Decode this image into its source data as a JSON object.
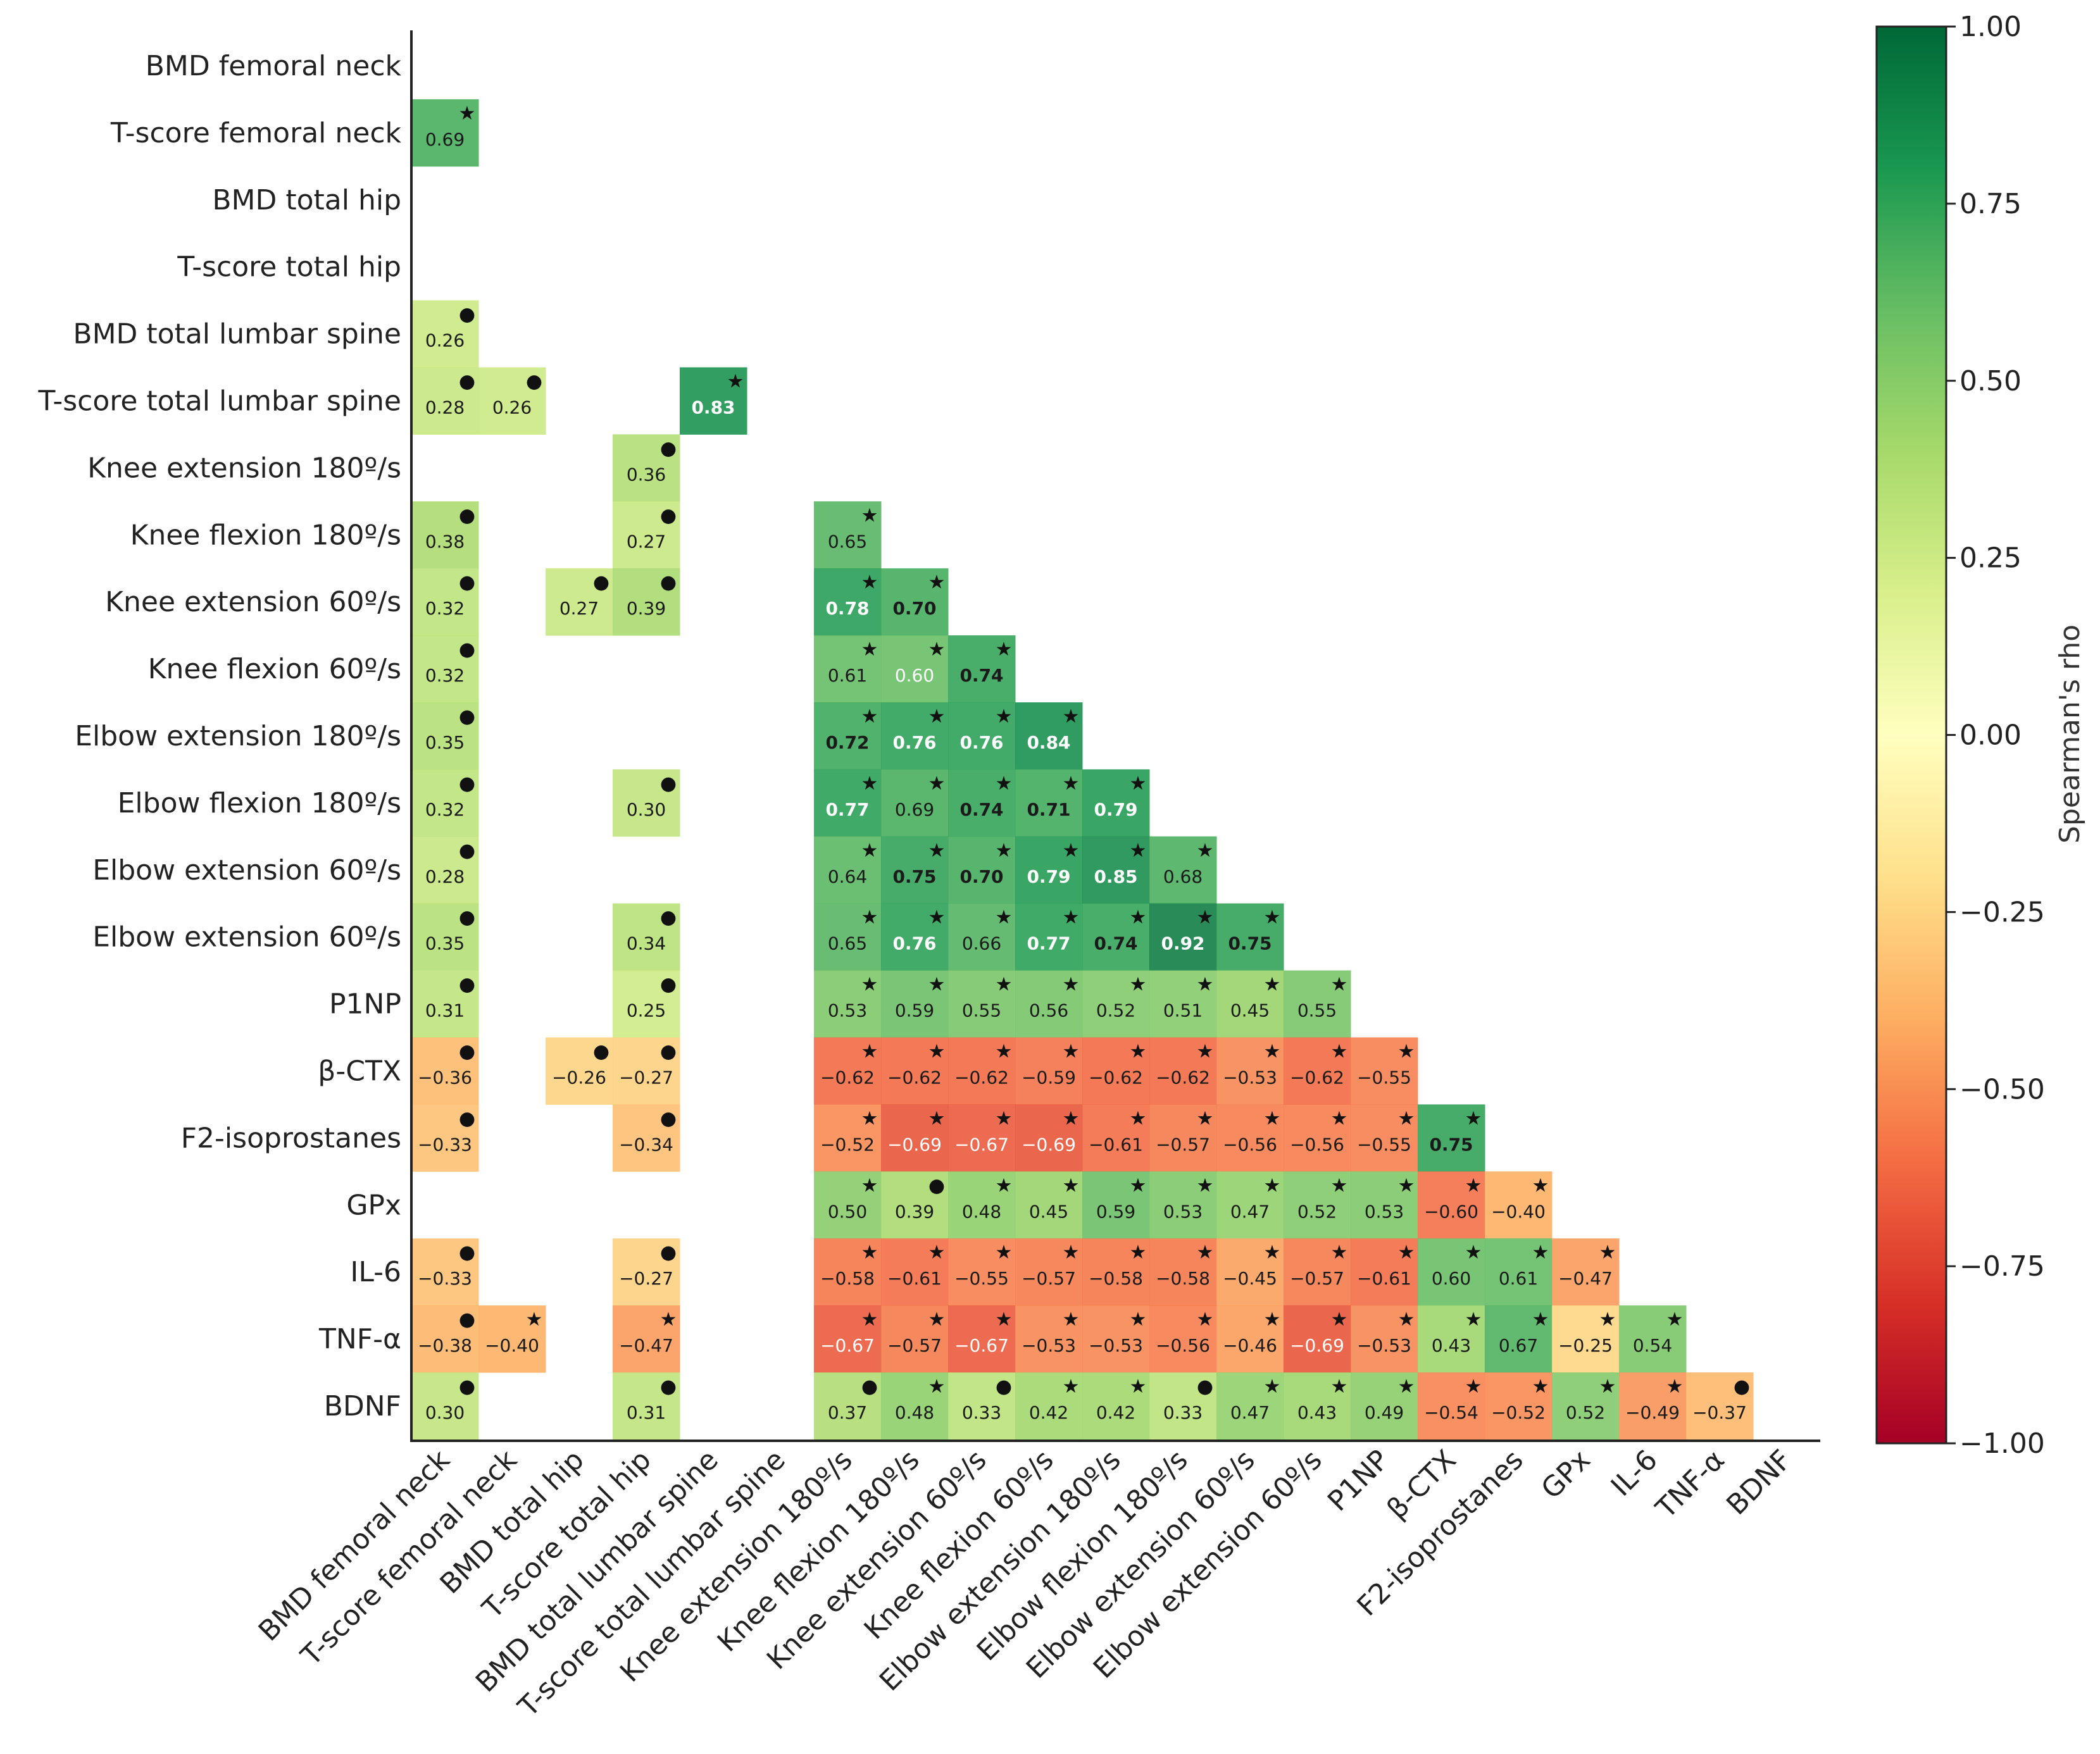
{
  "chart_data": {
    "type": "heatmap",
    "title": "",
    "labels": [
      "BMD femoral neck",
      "T-score femoral neck",
      "BMD total hip",
      "T-score total hip",
      "BMD total lumbar spine",
      "T-score total lumbar spine",
      "Knee extension 180º/s",
      "Knee flexion 180º/s",
      "Knee extension 60º/s",
      "Knee flexion 60º/s",
      "Elbow extension 180º/s",
      "Elbow flexion 180º/s",
      "Elbow extension 60º/s",
      "Elbow extension 60º/s",
      "P1NP",
      "β-CTX",
      "F2-isoprostanes",
      "GPx",
      "IL-6",
      "TNF-α",
      "BDNF"
    ],
    "x_labels": [
      "BMD femoral neck",
      "T-score femoral neck",
      "BMD total hip",
      "T-score total hip",
      "BMD total lumbar spine",
      "T-score total lumbar spine",
      "Knee extension 180º/s",
      "Knee flexion 180º/s",
      "Knee extension 60º/s",
      "Knee flexion 60º/s",
      "Elbow extension 180º/s",
      "Elbow flexion 180º/s",
      "Elbow extension 60º/s",
      "Elbow extension 60º/s",
      "P1NP",
      "β-CTX",
      "F2-isoprostanes",
      "GPx",
      "IL-6",
      "TNF-α",
      "BDNF"
    ],
    "cell_fields": [
      "row",
      "col",
      "rho",
      "marker"
    ],
    "cells": [
      [
        1,
        0,
        0.69,
        "star"
      ],
      [
        4,
        0,
        0.26,
        "dot"
      ],
      [
        5,
        0,
        0.28,
        "dot"
      ],
      [
        5,
        1,
        0.26,
        "dot"
      ],
      [
        5,
        4,
        0.83,
        "star"
      ],
      [
        6,
        3,
        0.36,
        "dot"
      ],
      [
        7,
        0,
        0.38,
        "dot"
      ],
      [
        7,
        3,
        0.27,
        "dot"
      ],
      [
        7,
        6,
        0.65,
        "star"
      ],
      [
        8,
        0,
        0.32,
        "dot"
      ],
      [
        8,
        2,
        0.27,
        "dot"
      ],
      [
        8,
        3,
        0.39,
        "dot"
      ],
      [
        8,
        6,
        0.78,
        "star"
      ],
      [
        8,
        7,
        0.7,
        "star"
      ],
      [
        9,
        0,
        0.32,
        "dot"
      ],
      [
        9,
        6,
        0.61,
        "star"
      ],
      [
        9,
        7,
        0.6,
        "star"
      ],
      [
        9,
        8,
        0.74,
        "star"
      ],
      [
        10,
        0,
        0.35,
        "dot"
      ],
      [
        10,
        6,
        0.72,
        "star"
      ],
      [
        10,
        7,
        0.76,
        "star"
      ],
      [
        10,
        8,
        0.76,
        "star"
      ],
      [
        10,
        9,
        0.84,
        "star"
      ],
      [
        11,
        0,
        0.32,
        "dot"
      ],
      [
        11,
        3,
        0.3,
        "dot"
      ],
      [
        11,
        6,
        0.77,
        "star"
      ],
      [
        11,
        7,
        0.69,
        "star"
      ],
      [
        11,
        8,
        0.74,
        "star"
      ],
      [
        11,
        9,
        0.71,
        "star"
      ],
      [
        11,
        10,
        0.79,
        "star"
      ],
      [
        12,
        0,
        0.28,
        "dot"
      ],
      [
        12,
        6,
        0.64,
        "star"
      ],
      [
        12,
        7,
        0.75,
        "star"
      ],
      [
        12,
        8,
        0.7,
        "star"
      ],
      [
        12,
        9,
        0.79,
        "star"
      ],
      [
        12,
        10,
        0.85,
        "star"
      ],
      [
        12,
        11,
        0.68,
        "star"
      ],
      [
        13,
        0,
        0.35,
        "dot"
      ],
      [
        13,
        3,
        0.34,
        "dot"
      ],
      [
        13,
        6,
        0.65,
        "star"
      ],
      [
        13,
        7,
        0.76,
        "star"
      ],
      [
        13,
        8,
        0.66,
        "star"
      ],
      [
        13,
        9,
        0.77,
        "star"
      ],
      [
        13,
        10,
        0.74,
        "star"
      ],
      [
        13,
        11,
        0.92,
        "star"
      ],
      [
        13,
        12,
        0.75,
        "star"
      ],
      [
        14,
        0,
        0.31,
        "dot"
      ],
      [
        14,
        3,
        0.25,
        "dot"
      ],
      [
        14,
        6,
        0.53,
        "star"
      ],
      [
        14,
        7,
        0.59,
        "star"
      ],
      [
        14,
        8,
        0.55,
        "star"
      ],
      [
        14,
        9,
        0.56,
        "star"
      ],
      [
        14,
        10,
        0.52,
        "star"
      ],
      [
        14,
        11,
        0.51,
        "star"
      ],
      [
        14,
        12,
        0.45,
        "star"
      ],
      [
        14,
        13,
        0.55,
        "star"
      ],
      [
        15,
        0,
        -0.36,
        "dot"
      ],
      [
        15,
        2,
        -0.26,
        "dot"
      ],
      [
        15,
        3,
        -0.27,
        "dot"
      ],
      [
        15,
        6,
        -0.62,
        "star"
      ],
      [
        15,
        7,
        -0.62,
        "star"
      ],
      [
        15,
        8,
        -0.62,
        "star"
      ],
      [
        15,
        9,
        -0.59,
        "star"
      ],
      [
        15,
        10,
        -0.62,
        "star"
      ],
      [
        15,
        11,
        -0.62,
        "star"
      ],
      [
        15,
        12,
        -0.53,
        "star"
      ],
      [
        15,
        13,
        -0.62,
        "star"
      ],
      [
        15,
        14,
        -0.55,
        "star"
      ],
      [
        16,
        0,
        -0.33,
        "dot"
      ],
      [
        16,
        3,
        -0.34,
        "dot"
      ],
      [
        16,
        6,
        -0.52,
        "star"
      ],
      [
        16,
        7,
        -0.69,
        "star"
      ],
      [
        16,
        8,
        -0.67,
        "star"
      ],
      [
        16,
        9,
        -0.69,
        "star"
      ],
      [
        16,
        10,
        -0.61,
        "star"
      ],
      [
        16,
        11,
        -0.57,
        "star"
      ],
      [
        16,
        12,
        -0.56,
        "star"
      ],
      [
        16,
        13,
        -0.56,
        "star"
      ],
      [
        16,
        14,
        -0.55,
        "star"
      ],
      [
        16,
        15,
        0.75,
        "star"
      ],
      [
        17,
        6,
        0.5,
        "star"
      ],
      [
        17,
        7,
        0.39,
        "dot"
      ],
      [
        17,
        8,
        0.48,
        "star"
      ],
      [
        17,
        9,
        0.45,
        "star"
      ],
      [
        17,
        10,
        0.59,
        "star"
      ],
      [
        17,
        11,
        0.53,
        "star"
      ],
      [
        17,
        12,
        0.47,
        "star"
      ],
      [
        17,
        13,
        0.52,
        "star"
      ],
      [
        17,
        14,
        0.53,
        "star"
      ],
      [
        17,
        15,
        -0.6,
        "star"
      ],
      [
        17,
        16,
        -0.4,
        "star"
      ],
      [
        18,
        0,
        -0.33,
        "dot"
      ],
      [
        18,
        3,
        -0.27,
        "dot"
      ],
      [
        18,
        6,
        -0.58,
        "star"
      ],
      [
        18,
        7,
        -0.61,
        "star"
      ],
      [
        18,
        8,
        -0.55,
        "star"
      ],
      [
        18,
        9,
        -0.57,
        "star"
      ],
      [
        18,
        10,
        -0.58,
        "star"
      ],
      [
        18,
        11,
        -0.58,
        "star"
      ],
      [
        18,
        12,
        -0.45,
        "star"
      ],
      [
        18,
        13,
        -0.57,
        "star"
      ],
      [
        18,
        14,
        -0.61,
        "star"
      ],
      [
        18,
        15,
        0.6,
        "star"
      ],
      [
        18,
        16,
        0.61,
        "star"
      ],
      [
        18,
        17,
        -0.47,
        "star"
      ],
      [
        19,
        0,
        -0.38,
        "dot"
      ],
      [
        19,
        1,
        -0.4,
        "star"
      ],
      [
        19,
        3,
        -0.47,
        "star"
      ],
      [
        19,
        6,
        -0.67,
        "star"
      ],
      [
        19,
        7,
        -0.57,
        "star"
      ],
      [
        19,
        8,
        -0.67,
        "star"
      ],
      [
        19,
        9,
        -0.53,
        "star"
      ],
      [
        19,
        10,
        -0.53,
        "star"
      ],
      [
        19,
        11,
        -0.56,
        "star"
      ],
      [
        19,
        12,
        -0.46,
        "star"
      ],
      [
        19,
        13,
        -0.69,
        "star"
      ],
      [
        19,
        14,
        -0.53,
        "star"
      ],
      [
        19,
        15,
        0.43,
        "star"
      ],
      [
        19,
        16,
        0.67,
        "star"
      ],
      [
        19,
        17,
        -0.25,
        "star"
      ],
      [
        19,
        18,
        0.54,
        "star"
      ],
      [
        20,
        0,
        0.3,
        "dot"
      ],
      [
        20,
        3,
        0.31,
        "dot"
      ],
      [
        20,
        6,
        0.37,
        "dot"
      ],
      [
        20,
        7,
        0.48,
        "star"
      ],
      [
        20,
        8,
        0.33,
        "dot"
      ],
      [
        20,
        9,
        0.42,
        "star"
      ],
      [
        20,
        10,
        0.42,
        "star"
      ],
      [
        20,
        11,
        0.33,
        "dot"
      ],
      [
        20,
        12,
        0.47,
        "star"
      ],
      [
        20,
        13,
        0.43,
        "star"
      ],
      [
        20,
        14,
        0.49,
        "star"
      ],
      [
        20,
        15,
        -0.54,
        "star"
      ],
      [
        20,
        16,
        -0.52,
        "star"
      ],
      [
        20,
        17,
        0.52,
        "star"
      ],
      [
        20,
        18,
        -0.49,
        "star"
      ],
      [
        20,
        19,
        -0.37,
        "dot"
      ]
    ],
    "colorbar": {
      "label": "Spearman's rho",
      "range": [
        -1,
        1
      ],
      "colormap": "RdYlGn",
      "ticks": [
        1.0,
        0.75,
        0.5,
        0.25,
        0.0,
        -0.25,
        -0.5,
        -0.75,
        -1.0
      ],
      "tick_labels": [
        "1.00",
        "0.75",
        "0.50",
        "0.25",
        "0.00",
        "−0.25",
        "−0.50",
        "−0.75",
        "−1.00"
      ]
    },
    "colormap_stops": [
      "#a50026",
      "#d73027",
      "#f46d43",
      "#fdae61",
      "#fee08b",
      "#ffffbf",
      "#d9ef8b",
      "#a6d96a",
      "#66bd63",
      "#1a9850",
      "#006837"
    ]
  }
}
